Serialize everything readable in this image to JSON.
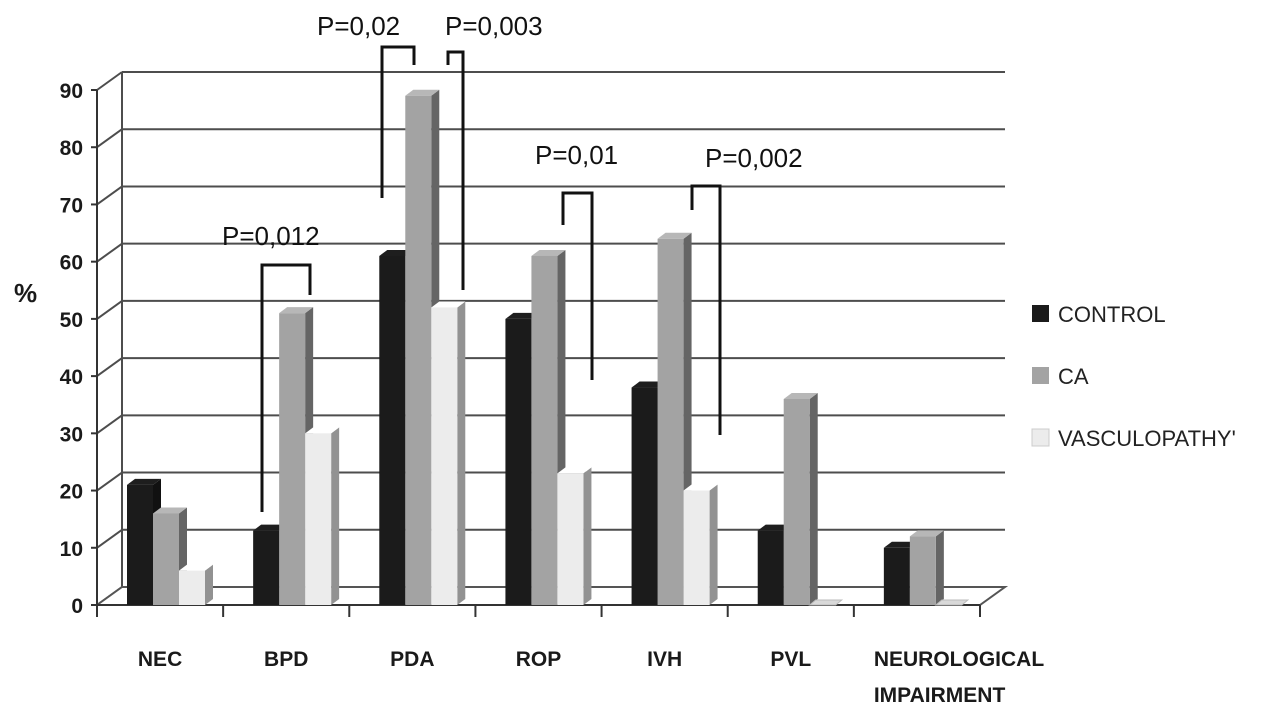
{
  "chart_data": {
    "type": "bar",
    "ylabel": "%",
    "xlabel": "",
    "ylim": [
      0,
      90
    ],
    "yticks": [
      "0",
      "10",
      "20",
      "30",
      "40",
      "50",
      "60",
      "70",
      "80",
      "90"
    ],
    "categories": [
      "NEC",
      "BPD",
      "PDA",
      "ROP",
      "IVH",
      "PVL",
      "NEUROLOGICAL\nIMPAIRMENT"
    ],
    "series": [
      {
        "name": "CONTROL",
        "color": "#1b1b1b",
        "values": [
          21,
          13,
          61,
          50,
          38,
          13,
          10
        ]
      },
      {
        "name": "CA",
        "color": "#a3a3a3",
        "values": [
          16,
          51,
          89,
          61,
          64,
          36,
          12
        ]
      },
      {
        "name": "VASCULOPATHY'",
        "color": "#ececec",
        "values": [
          6,
          30,
          52,
          23,
          20,
          0,
          0
        ]
      }
    ],
    "annotations": [
      {
        "text": "P=0,012",
        "category": "BPD"
      },
      {
        "text": "P=0,02",
        "category": "PDA"
      },
      {
        "text": "P=0,003",
        "category": "PDA"
      },
      {
        "text": "P=0,01",
        "category": "ROP"
      },
      {
        "text": "P=0,002",
        "category": "IVH"
      }
    ],
    "grid": true,
    "legend": "right",
    "style": "3d-clustered-column"
  }
}
